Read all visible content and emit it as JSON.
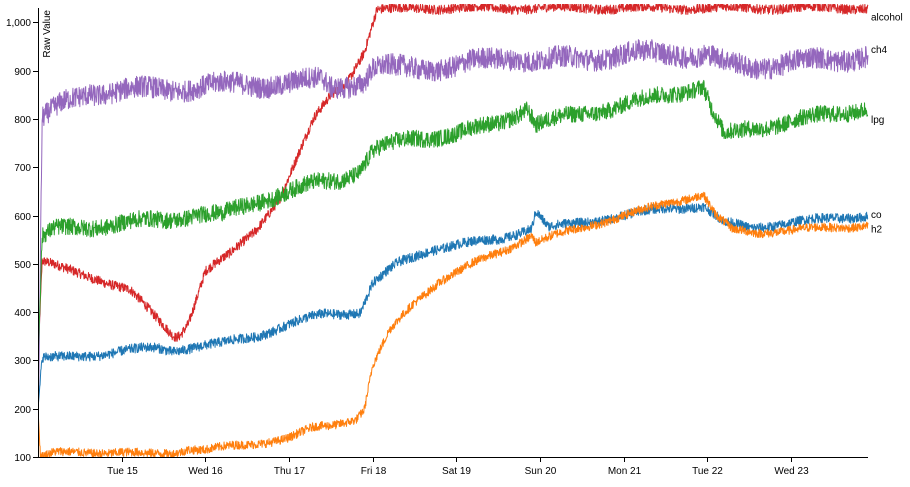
{
  "chart_data": {
    "type": "line",
    "ylabel": "Raw Value",
    "ylim": [
      100,
      1030
    ],
    "y_ticks": [
      100,
      200,
      300,
      400,
      500,
      600,
      700,
      800,
      900,
      1000
    ],
    "y_tick_labels": [
      "100",
      "200",
      "300",
      "400",
      "500",
      "600",
      "700",
      "800",
      "900",
      "1,000"
    ],
    "x_ticks": [
      1.0,
      2.0,
      3.0,
      4.0,
      5.0,
      6.0,
      7.0,
      8.0,
      9.0
    ],
    "x_tick_labels": [
      "Tue 15",
      "Wed 16",
      "Thu 17",
      "Fri 18",
      "Sat 19",
      "Sun 20",
      "Mon 21",
      "Tue 22",
      "Wed 23"
    ],
    "xlim": [
      0.0,
      9.92
    ],
    "legend_placement": "right end of each series",
    "grid": false,
    "series": [
      {
        "name": "alcohol",
        "color": "#d62728",
        "label_y": 1012,
        "band": 20,
        "x": [
          0.0,
          0.05,
          0.3,
          0.7,
          1.1,
          1.4,
          1.6,
          1.65,
          1.7,
          1.8,
          2.0,
          2.3,
          2.6,
          2.9,
          3.1,
          3.3,
          3.5,
          3.7,
          3.9,
          4.05,
          4.5,
          5.0,
          6.0,
          7.0,
          8.0,
          9.0,
          9.92
        ],
        "y": [
          300,
          505,
          490,
          470,
          445,
          390,
          355,
          350,
          355,
          380,
          485,
          520,
          570,
          640,
          720,
          800,
          850,
          880,
          940,
          1025,
          1030,
          1030,
          1030,
          1030,
          1030,
          1030,
          1030
        ]
      },
      {
        "name": "ch4",
        "color": "#9467bd",
        "label_y": 945,
        "band": 45,
        "x": [
          0.0,
          0.05,
          0.3,
          0.6,
          1.0,
          1.5,
          2.0,
          2.5,
          3.0,
          3.4,
          3.5,
          3.9,
          4.0,
          4.5,
          5.0,
          5.5,
          5.7,
          6.0,
          6.5,
          7.0,
          7.5,
          8.0,
          8.2,
          8.5,
          9.0,
          9.5,
          9.92
        ],
        "y": [
          130,
          800,
          830,
          855,
          860,
          860,
          870,
          870,
          875,
          880,
          865,
          880,
          905,
          905,
          910,
          925,
          930,
          920,
          925,
          935,
          935,
          935,
          915,
          905,
          920,
          920,
          935
        ]
      },
      {
        "name": "lpg",
        "color": "#2ca02c",
        "label_y": 800,
        "band": 35,
        "x": [
          0.0,
          0.05,
          0.2,
          0.5,
          1.0,
          1.5,
          1.9,
          2.2,
          2.7,
          3.0,
          3.3,
          3.6,
          3.85,
          4.0,
          4.5,
          5.0,
          5.5,
          5.85,
          5.95,
          6.5,
          7.0,
          7.5,
          7.95,
          8.05,
          8.2,
          8.5,
          9.0,
          9.5,
          9.92
        ],
        "y": [
          300,
          555,
          570,
          575,
          585,
          590,
          605,
          600,
          635,
          650,
          665,
          675,
          695,
          735,
          760,
          770,
          790,
          825,
          790,
          810,
          830,
          850,
          870,
          820,
          765,
          780,
          795,
          810,
          825
        ]
      },
      {
        "name": "co",
        "color": "#1f77b4",
        "label_y": 603,
        "band": 20,
        "x": [
          0.0,
          0.05,
          0.3,
          0.7,
          1.0,
          1.4,
          1.6,
          1.9,
          2.2,
          2.6,
          3.0,
          3.4,
          3.85,
          4.0,
          4.3,
          4.7,
          5.0,
          5.5,
          5.9,
          5.95,
          6.1,
          6.5,
          7.0,
          7.5,
          7.95,
          8.2,
          8.5,
          9.0,
          9.5,
          9.92
        ],
        "y": [
          200,
          305,
          305,
          312,
          320,
          325,
          320,
          330,
          335,
          350,
          375,
          395,
          400,
          460,
          500,
          530,
          540,
          550,
          575,
          610,
          575,
          585,
          600,
          615,
          620,
          585,
          575,
          585,
          595,
          600
        ]
      },
      {
        "name": "h2",
        "color": "#ff7f0e",
        "label_y": 573,
        "band": 18,
        "x": [
          0.0,
          0.03,
          0.2,
          0.6,
          1.0,
          1.3,
          1.6,
          1.8,
          2.0,
          2.5,
          3.0,
          3.3,
          3.5,
          3.8,
          3.9,
          4.0,
          4.2,
          4.5,
          4.8,
          5.2,
          5.6,
          5.9,
          5.95,
          6.2,
          6.6,
          7.0,
          7.5,
          7.95,
          8.1,
          8.3,
          8.6,
          9.0,
          9.5,
          9.92
        ],
        "y": [
          200,
          100,
          108,
          110,
          110,
          105,
          108,
          118,
          115,
          125,
          140,
          160,
          165,
          180,
          200,
          290,
          360,
          420,
          465,
          500,
          530,
          560,
          545,
          560,
          580,
          600,
          625,
          645,
          600,
          570,
          565,
          570,
          575,
          580
        ]
      }
    ]
  }
}
